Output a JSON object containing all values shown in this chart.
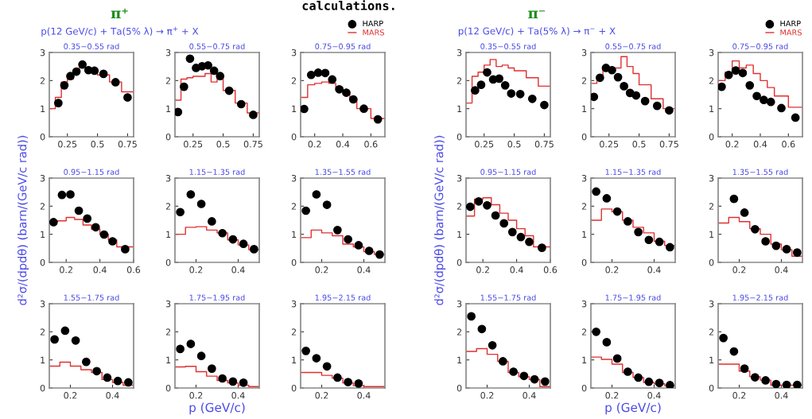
{
  "chart_data": [
    {
      "type": "scatter",
      "title": "0.35−0.55 rad",
      "annotations": [
        "π⁺",
        "p(12 GeV/c) + Ta(5% λ) → π$^{+}$ + X",
        "calculations."
      ],
      "xlim": [
        0.1,
        0.8
      ],
      "xticks": [
        0.25,
        0.5,
        0.75
      ],
      "ylim": [
        0,
        3
      ],
      "yticks": [
        0,
        1,
        2,
        3
      ],
      "series": [
        {
          "color": "#000000",
          "marker": "circle",
          "x": [
            0.175,
            0.225,
            0.275,
            0.325,
            0.375,
            0.425,
            0.475,
            0.55,
            0.65,
            0.75
          ],
          "values": [
            1.2,
            1.83,
            2.16,
            2.32,
            2.57,
            2.37,
            2.35,
            2.24,
            1.94,
            1.4
          ]
        },
        {
          "type": "step",
          "color": "#e03030",
          "x": [
            0.1,
            0.15,
            0.2,
            0.25,
            0.3,
            0.35,
            0.4,
            0.45,
            0.5,
            0.6,
            0.7,
            0.8
          ],
          "values": [
            1.0,
            1.4,
            1.95,
            2.05,
            2.35,
            2.55,
            2.45,
            2.35,
            2.2,
            1.95,
            1.6,
            1.6
          ]
        }
      ]
    },
    {
      "type": "scatter",
      "title": "0.55−0.75 rad",
      "xlim": [
        0.1,
        0.8
      ],
      "xticks": [
        0.25,
        0.5,
        0.75
      ],
      "ylim": [
        0,
        3
      ],
      "yticks": [
        0,
        1,
        2,
        3
      ],
      "series": [
        {
          "color": "#000000",
          "marker": "circle",
          "x": [
            0.125,
            0.175,
            0.225,
            0.275,
            0.325,
            0.375,
            0.425,
            0.475,
            0.55,
            0.65,
            0.75
          ],
          "values": [
            0.88,
            1.78,
            2.78,
            2.45,
            2.51,
            2.54,
            2.35,
            2.16,
            1.64,
            1.16,
            0.78
          ]
        },
        {
          "type": "step",
          "color": "#e03030",
          "x": [
            0.1,
            0.15,
            0.2,
            0.25,
            0.3,
            0.35,
            0.4,
            0.45,
            0.5,
            0.6,
            0.7,
            0.8
          ],
          "values": [
            1.3,
            2.05,
            2.1,
            2.15,
            2.15,
            2.25,
            1.95,
            2.05,
            1.65,
            1.2,
            0.85,
            0.85
          ]
        }
      ]
    },
    {
      "type": "scatter",
      "title": "0.75−0.95 rad",
      "legend": "top right",
      "xlim": [
        0.1,
        0.7
      ],
      "xticks": [
        0.2,
        0.4,
        0.6
      ],
      "ylim": [
        0,
        3
      ],
      "yticks": [
        0,
        1,
        2,
        3
      ],
      "series": [
        {
          "name": "HARP",
          "color": "#000000",
          "marker": "circle",
          "x": [
            0.125,
            0.175,
            0.225,
            0.275,
            0.325,
            0.375,
            0.425,
            0.475,
            0.55,
            0.65
          ],
          "values": [
            0.99,
            2.2,
            2.28,
            2.27,
            2.04,
            1.69,
            1.57,
            1.33,
            1.0,
            0.62
          ]
        },
        {
          "name": "MARS",
          "type": "step",
          "color": "#e03030",
          "x": [
            0.1,
            0.15,
            0.2,
            0.25,
            0.3,
            0.35,
            0.4,
            0.45,
            0.5,
            0.6,
            0.7
          ],
          "values": [
            1.4,
            1.85,
            1.9,
            1.95,
            1.9,
            1.75,
            1.6,
            1.35,
            1.0,
            0.65,
            0.65
          ]
        }
      ]
    },
    {
      "type": "scatter",
      "title": "0.95−1.15 rad",
      "ylabel": "d²σ/(dpdθ) (barn/(GeV/c rad))",
      "xlim": [
        0.1,
        0.6
      ],
      "xticks": [
        0.2,
        0.4,
        0.6
      ],
      "ylim": [
        0,
        3
      ],
      "yticks": [
        0,
        1,
        2,
        3
      ],
      "series": [
        {
          "color": "#000000",
          "marker": "circle",
          "x": [
            0.125,
            0.175,
            0.225,
            0.275,
            0.325,
            0.375,
            0.425,
            0.475,
            0.55
          ],
          "values": [
            1.43,
            2.4,
            2.42,
            1.84,
            1.56,
            1.25,
            0.99,
            0.75,
            0.47
          ]
        },
        {
          "type": "step",
          "color": "#e03030",
          "x": [
            0.1,
            0.15,
            0.2,
            0.25,
            0.3,
            0.35,
            0.4,
            0.45,
            0.5,
            0.6
          ],
          "values": [
            1.45,
            1.48,
            1.6,
            1.53,
            1.33,
            1.18,
            1.0,
            0.8,
            0.55,
            0.55
          ]
        }
      ]
    },
    {
      "type": "scatter",
      "title": "1.15−1.35 rad",
      "xlim": [
        0.1,
        0.5
      ],
      "xticks": [
        0.2,
        0.4
      ],
      "ylim": [
        0,
        3
      ],
      "yticks": [
        0,
        1,
        2,
        3
      ],
      "series": [
        {
          "color": "#000000",
          "marker": "circle",
          "x": [
            0.125,
            0.175,
            0.225,
            0.275,
            0.325,
            0.375,
            0.425,
            0.475
          ],
          "values": [
            1.79,
            2.42,
            2.08,
            1.46,
            1.04,
            0.82,
            0.66,
            0.47
          ]
        },
        {
          "type": "step",
          "color": "#e03030",
          "x": [
            0.1,
            0.15,
            0.2,
            0.25,
            0.3,
            0.35,
            0.4,
            0.45,
            0.5
          ],
          "values": [
            1.0,
            1.25,
            1.27,
            1.15,
            1.05,
            0.8,
            0.62,
            0.45,
            0.45
          ]
        }
      ]
    },
    {
      "type": "scatter",
      "title": "1.35−1.55 rad",
      "xlim": [
        0.1,
        0.5
      ],
      "xticks": [
        0.2,
        0.4
      ],
      "ylim": [
        0,
        3
      ],
      "yticks": [
        0,
        1,
        2,
        3
      ],
      "series": [
        {
          "color": "#000000",
          "marker": "circle",
          "x": [
            0.125,
            0.175,
            0.225,
            0.275,
            0.325,
            0.375,
            0.425,
            0.475
          ],
          "values": [
            1.84,
            2.42,
            2.05,
            1.15,
            0.82,
            0.61,
            0.41,
            0.28
          ]
        },
        {
          "type": "step",
          "color": "#e03030",
          "x": [
            0.1,
            0.15,
            0.2,
            0.25,
            0.3,
            0.35,
            0.4,
            0.45,
            0.5
          ],
          "values": [
            0.88,
            1.15,
            1.05,
            0.95,
            0.65,
            0.55,
            0.38,
            0.28,
            0.28
          ]
        }
      ]
    },
    {
      "type": "scatter",
      "title": "1.55−1.75 rad",
      "xlim": [
        0.1,
        0.5
      ],
      "xticks": [
        0.2,
        0.4
      ],
      "ylim": [
        0,
        3
      ],
      "yticks": [
        0,
        1,
        2,
        3
      ],
      "series": [
        {
          "color": "#000000",
          "marker": "circle",
          "x": [
            0.125,
            0.175,
            0.225,
            0.275,
            0.325,
            0.375,
            0.425,
            0.475
          ],
          "values": [
            1.73,
            2.04,
            1.69,
            0.93,
            0.6,
            0.37,
            0.25,
            0.2
          ]
        },
        {
          "type": "step",
          "color": "#e03030",
          "x": [
            0.1,
            0.15,
            0.2,
            0.25,
            0.3,
            0.35,
            0.4,
            0.45,
            0.5
          ],
          "values": [
            0.78,
            0.92,
            0.78,
            0.65,
            0.55,
            0.3,
            0.2,
            0.1,
            0.1
          ]
        }
      ]
    },
    {
      "type": "scatter",
      "title": "1.75−1.95 rad",
      "xlabel": "p (GeV/c)",
      "xlim": [
        0.1,
        0.5
      ],
      "xticks": [
        0.2,
        0.4
      ],
      "ylim": [
        0,
        3
      ],
      "yticks": [
        0,
        1,
        2,
        3
      ],
      "series": [
        {
          "color": "#000000",
          "marker": "circle",
          "x": [
            0.125,
            0.175,
            0.225,
            0.275,
            0.325,
            0.375,
            0.425
          ],
          "values": [
            1.39,
            1.57,
            1.14,
            0.69,
            0.34,
            0.23,
            0.19
          ]
        },
        {
          "type": "step",
          "color": "#e03030",
          "x": [
            0.1,
            0.15,
            0.2,
            0.25,
            0.3,
            0.35,
            0.4,
            0.45,
            0.5
          ],
          "values": [
            0.75,
            0.77,
            0.58,
            0.42,
            0.27,
            0.18,
            0.1,
            0.05,
            0.05
          ]
        }
      ]
    },
    {
      "type": "scatter",
      "title": "1.95−2.15 rad",
      "xlim": [
        0.1,
        0.5
      ],
      "xticks": [
        0.2,
        0.4
      ],
      "ylim": [
        0,
        3
      ],
      "yticks": [
        0,
        1,
        2,
        3
      ],
      "series": [
        {
          "color": "#000000",
          "marker": "circle",
          "x": [
            0.125,
            0.175,
            0.225,
            0.275,
            0.325,
            0.375
          ],
          "values": [
            1.32,
            1.06,
            0.77,
            0.37,
            0.21,
            0.16
          ]
        },
        {
          "type": "step",
          "color": "#e03030",
          "x": [
            0.1,
            0.15,
            0.2,
            0.25,
            0.3,
            0.35,
            0.4,
            0.45,
            0.5
          ],
          "values": [
            0.55,
            0.55,
            0.45,
            0.35,
            0.18,
            0.08,
            0.05,
            0.05,
            0.05
          ]
        }
      ]
    },
    {
      "type": "scatter",
      "title": "0.35−0.55 rad",
      "annotations": [
        "π⁻",
        "p(12 GeV/c) + Ta(5% λ) → π$^{−}$ + X"
      ],
      "xlim": [
        0.1,
        0.8
      ],
      "xticks": [
        0.25,
        0.5,
        0.75
      ],
      "ylim": [
        0,
        3
      ],
      "yticks": [
        0,
        1,
        2,
        3
      ],
      "series": [
        {
          "color": "#000000",
          "marker": "circle",
          "x": [
            0.175,
            0.225,
            0.275,
            0.325,
            0.375,
            0.425,
            0.475,
            0.55,
            0.65,
            0.75
          ],
          "values": [
            1.65,
            1.85,
            2.29,
            2.04,
            2.07,
            1.83,
            1.54,
            1.52,
            1.35,
            1.13
          ]
        },
        {
          "type": "step",
          "color": "#e03030",
          "x": [
            0.1,
            0.15,
            0.2,
            0.25,
            0.3,
            0.35,
            0.4,
            0.45,
            0.5,
            0.6,
            0.7,
            0.8
          ],
          "values": [
            1.2,
            2.15,
            2.3,
            2.55,
            2.75,
            2.5,
            2.55,
            2.45,
            2.35,
            2.1,
            1.8,
            1.8
          ]
        }
      ]
    },
    {
      "type": "scatter",
      "title": "0.55−0.75 rad",
      "xlim": [
        0.1,
        0.8
      ],
      "xticks": [
        0.25,
        0.5,
        0.75
      ],
      "ylim": [
        0,
        3
      ],
      "yticks": [
        0,
        1,
        2,
        3
      ],
      "series": [
        {
          "color": "#000000",
          "marker": "circle",
          "x": [
            0.125,
            0.175,
            0.225,
            0.275,
            0.325,
            0.375,
            0.425,
            0.475,
            0.55,
            0.65,
            0.75
          ],
          "values": [
            1.42,
            2.1,
            2.45,
            2.37,
            2.12,
            1.8,
            1.56,
            1.47,
            1.27,
            1.1,
            0.94
          ]
        },
        {
          "type": "step",
          "color": "#e03030",
          "x": [
            0.1,
            0.15,
            0.2,
            0.25,
            0.3,
            0.35,
            0.4,
            0.45,
            0.5,
            0.6,
            0.7,
            0.8
          ],
          "values": [
            1.9,
            2.15,
            2.45,
            2.4,
            2.45,
            2.85,
            2.5,
            2.25,
            1.85,
            1.35,
            1.0,
            1.0
          ]
        }
      ]
    },
    {
      "type": "scatter",
      "title": "0.75−0.95 rad",
      "legend": "top right",
      "xlim": [
        0.1,
        0.7
      ],
      "xticks": [
        0.2,
        0.4,
        0.6
      ],
      "ylim": [
        0,
        3
      ],
      "yticks": [
        0,
        1,
        2,
        3
      ],
      "series": [
        {
          "name": "HARP",
          "color": "#000000",
          "marker": "circle",
          "x": [
            0.125,
            0.175,
            0.225,
            0.275,
            0.325,
            0.375,
            0.425,
            0.475,
            0.55,
            0.65
          ],
          "values": [
            1.78,
            2.2,
            2.36,
            2.27,
            1.83,
            1.45,
            1.31,
            1.24,
            1.02,
            0.68
          ]
        },
        {
          "name": "MARS",
          "type": "step",
          "color": "#e03030",
          "x": [
            0.1,
            0.15,
            0.2,
            0.25,
            0.3,
            0.35,
            0.4,
            0.45,
            0.5,
            0.6,
            0.7
          ],
          "values": [
            2.0,
            2.3,
            2.7,
            2.45,
            2.55,
            2.25,
            2.0,
            1.75,
            1.45,
            1.05,
            1.05
          ]
        }
      ]
    },
    {
      "type": "scatter",
      "title": "0.95−1.15 rad",
      "ylabel": "d²σ/(dpdθ) (barn/(GeV/c rad))",
      "xlim": [
        0.1,
        0.6
      ],
      "xticks": [
        0.2,
        0.4,
        0.6
      ],
      "ylim": [
        0,
        3
      ],
      "yticks": [
        0,
        1,
        2,
        3
      ],
      "series": [
        {
          "color": "#000000",
          "marker": "circle",
          "x": [
            0.125,
            0.175,
            0.225,
            0.275,
            0.325,
            0.375,
            0.425,
            0.475,
            0.55
          ],
          "values": [
            1.98,
            2.17,
            2.03,
            1.67,
            1.39,
            1.08,
            0.9,
            0.73,
            0.52
          ]
        },
        {
          "type": "step",
          "color": "#e03030",
          "x": [
            0.1,
            0.15,
            0.2,
            0.25,
            0.3,
            0.35,
            0.4,
            0.45,
            0.5,
            0.6
          ],
          "values": [
            1.65,
            2.25,
            2.3,
            2.05,
            1.75,
            1.5,
            1.2,
            0.95,
            0.55,
            0.55
          ]
        }
      ]
    },
    {
      "type": "scatter",
      "title": "1.15−1.35 rad",
      "xlim": [
        0.1,
        0.5
      ],
      "xticks": [
        0.2,
        0.4
      ],
      "ylim": [
        0,
        3
      ],
      "yticks": [
        0,
        1,
        2,
        3
      ],
      "series": [
        {
          "color": "#000000",
          "marker": "circle",
          "x": [
            0.125,
            0.175,
            0.225,
            0.275,
            0.325,
            0.375,
            0.425,
            0.475
          ],
          "values": [
            2.52,
            2.28,
            1.81,
            1.46,
            1.08,
            0.8,
            0.73,
            0.54
          ]
        },
        {
          "type": "step",
          "color": "#e03030",
          "x": [
            0.1,
            0.15,
            0.2,
            0.25,
            0.3,
            0.35,
            0.4,
            0.45,
            0.5
          ],
          "values": [
            1.5,
            1.9,
            1.8,
            1.5,
            1.25,
            1.05,
            0.75,
            0.6,
            0.6
          ]
        }
      ]
    },
    {
      "type": "scatter",
      "title": "1.35−1.55 rad",
      "xlim": [
        0.1,
        0.5
      ],
      "xticks": [
        0.2,
        0.4
      ],
      "ylim": [
        0,
        3
      ],
      "yticks": [
        0,
        1,
        2,
        3
      ],
      "series": [
        {
          "color": "#000000",
          "marker": "circle",
          "x": [
            0.175,
            0.225,
            0.275,
            0.325,
            0.375,
            0.425,
            0.475
          ],
          "values": [
            2.26,
            1.77,
            1.18,
            0.75,
            0.59,
            0.47,
            0.35
          ]
        },
        {
          "type": "step",
          "color": "#e03030",
          "x": [
            0.1,
            0.15,
            0.2,
            0.25,
            0.3,
            0.35,
            0.4,
            0.45,
            0.5
          ],
          "values": [
            1.4,
            1.6,
            1.45,
            1.2,
            1.0,
            0.65,
            0.45,
            0.22,
            0.22
          ]
        }
      ]
    },
    {
      "type": "scatter",
      "title": "1.55−1.75 rad",
      "xlim": [
        0.1,
        0.5
      ],
      "xticks": [
        0.2,
        0.4
      ],
      "ylim": [
        0,
        3
      ],
      "yticks": [
        0,
        1,
        2,
        3
      ],
      "series": [
        {
          "color": "#000000",
          "marker": "circle",
          "x": [
            0.125,
            0.175,
            0.225,
            0.275,
            0.325,
            0.375,
            0.425,
            0.475
          ],
          "values": [
            2.55,
            2.1,
            1.52,
            0.95,
            0.58,
            0.43,
            0.31,
            0.23
          ]
        },
        {
          "type": "step",
          "color": "#e03030",
          "x": [
            0.1,
            0.15,
            0.2,
            0.25,
            0.3,
            0.35,
            0.4,
            0.45,
            0.5
          ],
          "values": [
            1.3,
            1.4,
            1.2,
            0.95,
            0.55,
            0.4,
            0.3,
            0.05,
            0.05
          ]
        }
      ]
    },
    {
      "type": "scatter",
      "title": "1.75−1.95 rad",
      "xlabel": "p (GeV/c)",
      "xlim": [
        0.1,
        0.5
      ],
      "xticks": [
        0.2,
        0.4
      ],
      "ylim": [
        0,
        3
      ],
      "yticks": [
        0,
        1,
        2,
        3
      ],
      "series": [
        {
          "color": "#000000",
          "marker": "circle",
          "x": [
            0.125,
            0.175,
            0.225,
            0.275,
            0.325,
            0.375,
            0.425,
            0.475
          ],
          "values": [
            2.0,
            1.63,
            1.05,
            0.58,
            0.37,
            0.22,
            0.18,
            0.1
          ]
        },
        {
          "type": "step",
          "color": "#e03030",
          "x": [
            0.1,
            0.15,
            0.2,
            0.25,
            0.3,
            0.35,
            0.4,
            0.45,
            0.5
          ],
          "values": [
            1.1,
            1.02,
            0.85,
            0.55,
            0.38,
            0.2,
            0.15,
            0.08,
            0.08
          ]
        }
      ]
    },
    {
      "type": "scatter",
      "title": "1.95−2.15 rad",
      "xlim": [
        0.1,
        0.5
      ],
      "xticks": [
        0.2,
        0.4
      ],
      "ylim": [
        0,
        3
      ],
      "yticks": [
        0,
        1,
        2,
        3
      ],
      "series": [
        {
          "color": "#000000",
          "marker": "circle",
          "x": [
            0.125,
            0.175,
            0.225,
            0.275,
            0.325,
            0.375,
            0.425,
            0.475
          ],
          "values": [
            1.78,
            1.3,
            0.69,
            0.38,
            0.27,
            0.14,
            0.11,
            0.11
          ]
        },
        {
          "type": "step",
          "color": "#e03030",
          "x": [
            0.1,
            0.15,
            0.2,
            0.25,
            0.3,
            0.35,
            0.4,
            0.45,
            0.5
          ],
          "values": [
            0.85,
            0.85,
            0.6,
            0.4,
            0.28,
            0.1,
            0.1,
            0.1,
            0.1
          ]
        }
      ]
    }
  ]
}
